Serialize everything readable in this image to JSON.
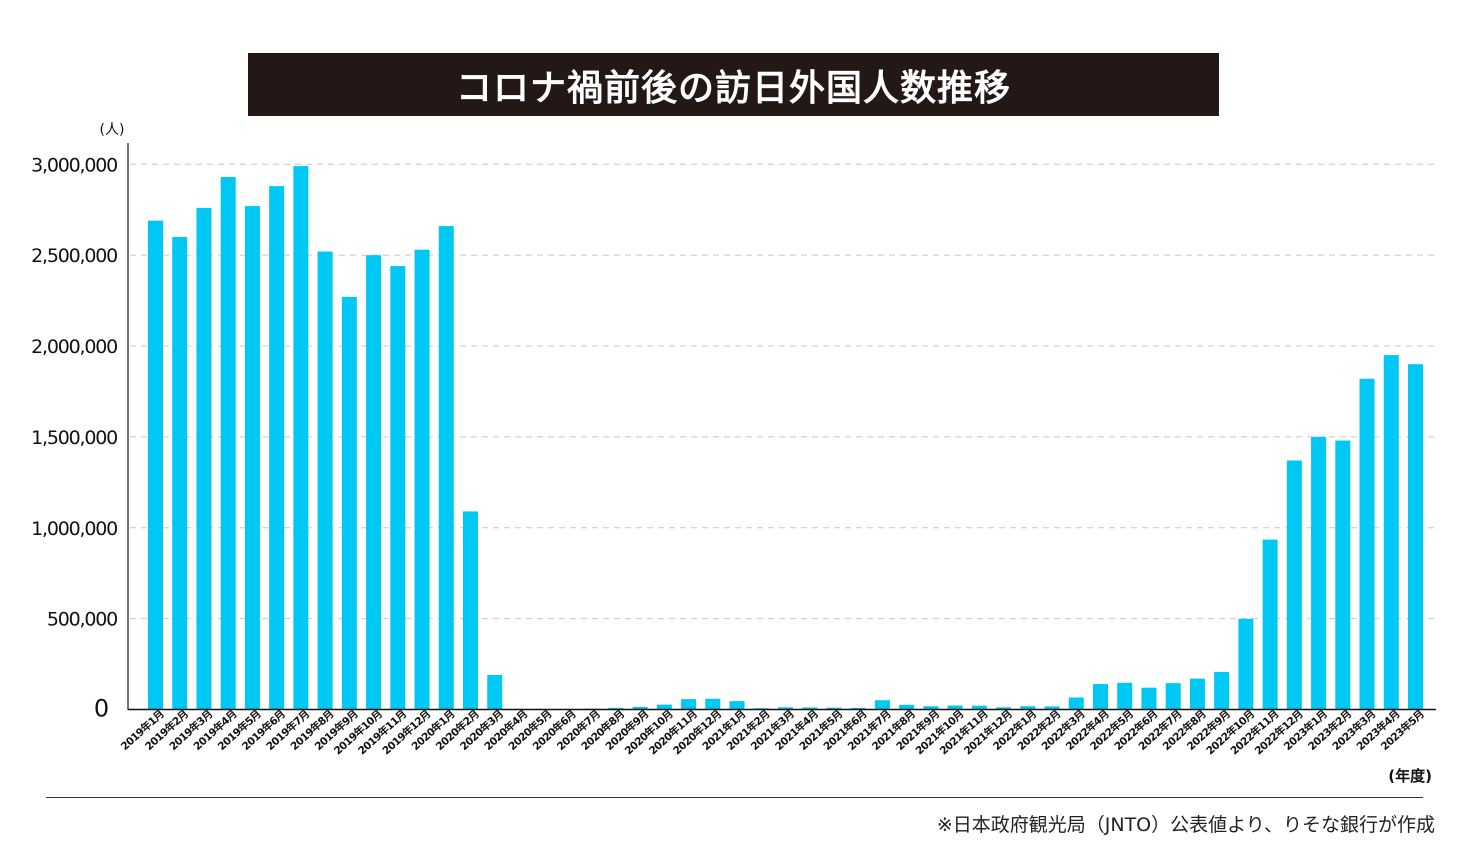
{
  "title": "コロナ禍前後の訪日外国人数推移",
  "source": "※日本政府観光局（JNTO）公表値より、りそな銀行が作成",
  "chart_data": {
    "type": "bar",
    "title": "コロナ禍前後の訪日外国人数推移",
    "ylabel": "(人)",
    "xlabel": "(年度)",
    "ylim": [
      0,
      3000000
    ],
    "yticks": [
      0,
      500000,
      1000000,
      1500000,
      2000000,
      2500000,
      3000000
    ],
    "ytick_labels": [
      "0",
      "500,000",
      "1,000,000",
      "1,500,000",
      "2,000,000",
      "2,500,000",
      "3,000,000"
    ],
    "grid": "horizontal-dashed",
    "bar_color": "#00C8F5",
    "categories": [
      "2019年1月",
      "2019年2月",
      "2019年3月",
      "2019年4月",
      "2019年5月",
      "2019年6月",
      "2019年7月",
      "2019年8月",
      "2019年9月",
      "2019年10月",
      "2019年11月",
      "2019年12月",
      "2020年1月",
      "2020年2月",
      "2020年3月",
      "2020年4月",
      "2020年5月",
      "2020年6月",
      "2020年7月",
      "2020年8月",
      "2020年9月",
      "2020年10月",
      "2020年11月",
      "2020年12月",
      "2021年1月",
      "2021年2月",
      "2021年3月",
      "2021年4月",
      "2021年5月",
      "2021年6月",
      "2021年7月",
      "2021年8月",
      "2021年9月",
      "2021年10月",
      "2021年11月",
      "2021年12月",
      "2022年1月",
      "2022年2月",
      "2022年3月",
      "2022年4月",
      "2022年5月",
      "2022年6月",
      "2022年7月",
      "2022年8月",
      "2022年9月",
      "2022年10月",
      "2022年11月",
      "2022年12月",
      "2023年1月",
      "2023年2月",
      "2023年3月",
      "2023年4月",
      "2023年5月"
    ],
    "values": [
      2690000,
      2600000,
      2760000,
      2930000,
      2770000,
      2880000,
      2990000,
      2520000,
      2270000,
      2500000,
      2440000,
      2530000,
      2660000,
      1090000,
      190000,
      3000,
      2000,
      3000,
      4000,
      9000,
      14000,
      27000,
      57000,
      59000,
      46000,
      7000,
      12000,
      11000,
      10000,
      9000,
      51000,
      26000,
      18000,
      22000,
      21000,
      12000,
      18000,
      17000,
      66000,
      140000,
      147000,
      120000,
      145000,
      170000,
      207000,
      499000,
      935000,
      1370000,
      1500000,
      1480000,
      1820000,
      1950000,
      1900000
    ]
  }
}
